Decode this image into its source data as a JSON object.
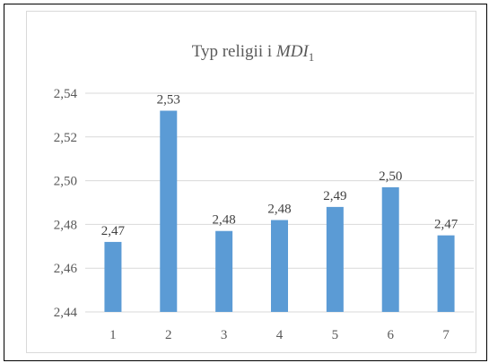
{
  "colors": {
    "bar": "#5b9bd5",
    "grid": "#d9d9d9",
    "text": "#595959",
    "outer_border": "#000000"
  },
  "chart_data": {
    "type": "bar",
    "title": {
      "main": "Typ religii i ",
      "italic": "MDI",
      "subscript": "1"
    },
    "xlabel": "",
    "ylabel": "",
    "categories": [
      "1",
      "2",
      "3",
      "4",
      "5",
      "6",
      "7"
    ],
    "values": [
      2.472,
      2.532,
      2.477,
      2.482,
      2.488,
      2.497,
      2.475
    ],
    "data_labels": [
      "2,47",
      "2,53",
      "2,48",
      "2,48",
      "2,49",
      "2,50",
      "2,47"
    ],
    "ylim": [
      2.44,
      2.54
    ],
    "y_ticks": [
      2.44,
      2.46,
      2.48,
      2.5,
      2.52,
      2.54
    ],
    "y_tick_labels": [
      "2,44",
      "2,46",
      "2,48",
      "2,50",
      "2,52",
      "2,54"
    ],
    "grid": true,
    "legend": "none"
  }
}
